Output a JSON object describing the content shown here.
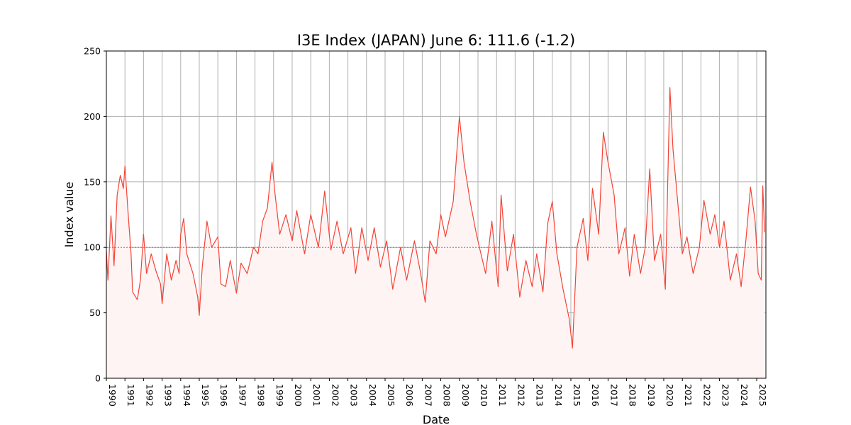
{
  "chart_data": {
    "type": "line",
    "title": "I3E Index (JAPAN) June 6: 111.6 (-1.2)",
    "xlabel": "Date",
    "ylabel": "Index value",
    "xlim": [
      "1990-01-01",
      "2025-07-01"
    ],
    "ylim": [
      0,
      250
    ],
    "yticks": [
      0,
      50,
      100,
      150,
      200,
      250
    ],
    "xticks": [
      "1990",
      "1991",
      "1992",
      "1993",
      "1994",
      "1995",
      "1996",
      "1997",
      "1998",
      "1999",
      "2000",
      "2001",
      "2002",
      "2003",
      "2004",
      "2005",
      "2006",
      "2007",
      "2008",
      "2009",
      "2010",
      "2011",
      "2012",
      "2013",
      "2014",
      "2015",
      "2016",
      "2017",
      "2018",
      "2019",
      "2020",
      "2021",
      "2022",
      "2023",
      "2024",
      "2025"
    ],
    "grid": true,
    "reference_line": 100,
    "colors": {
      "line": "#f44336",
      "fill": "#fdf4f3",
      "reference": "#808080"
    },
    "series": [
      {
        "values": [
          [
            "1990-01-01",
            97
          ],
          [
            "1990-02-01",
            75
          ],
          [
            "1990-04-01",
            124
          ],
          [
            "1990-06-01",
            86
          ],
          [
            "1990-08-01",
            140
          ],
          [
            "1990-10-01",
            155
          ],
          [
            "1990-12-01",
            145
          ],
          [
            "1991-01-01",
            162
          ],
          [
            "1991-03-01",
            128
          ],
          [
            "1991-05-01",
            95
          ],
          [
            "1991-06-01",
            66
          ],
          [
            "1991-09-01",
            60
          ],
          [
            "1991-11-01",
            75
          ],
          [
            "1992-01-01",
            110
          ],
          [
            "1992-03-01",
            80
          ],
          [
            "1992-06-01",
            95
          ],
          [
            "1992-09-01",
            82
          ],
          [
            "1992-12-01",
            72
          ],
          [
            "1993-01-01",
            57
          ],
          [
            "1993-04-01",
            95
          ],
          [
            "1993-07-01",
            75
          ],
          [
            "1993-10-01",
            90
          ],
          [
            "1993-12-01",
            80
          ],
          [
            "1994-01-01",
            110
          ],
          [
            "1994-03-01",
            122
          ],
          [
            "1994-05-01",
            95
          ],
          [
            "1994-09-01",
            80
          ],
          [
            "1994-12-01",
            62
          ],
          [
            "1995-01-01",
            48
          ],
          [
            "1995-03-01",
            85
          ],
          [
            "1995-06-01",
            120
          ],
          [
            "1995-09-01",
            100
          ],
          [
            "1996-01-01",
            108
          ],
          [
            "1996-03-01",
            72
          ],
          [
            "1996-06-01",
            70
          ],
          [
            "1996-09-01",
            90
          ],
          [
            "1997-01-01",
            65
          ],
          [
            "1997-04-01",
            88
          ],
          [
            "1997-08-01",
            80
          ],
          [
            "1997-12-01",
            100
          ],
          [
            "1998-03-01",
            95
          ],
          [
            "1998-06-01",
            120
          ],
          [
            "1998-09-01",
            130
          ],
          [
            "1998-12-01",
            165
          ],
          [
            "1999-02-01",
            140
          ],
          [
            "1999-05-01",
            110
          ],
          [
            "1999-09-01",
            125
          ],
          [
            "2000-01-01",
            105
          ],
          [
            "2000-04-01",
            128
          ],
          [
            "2000-09-01",
            95
          ],
          [
            "2001-01-01",
            125
          ],
          [
            "2001-06-01",
            100
          ],
          [
            "2001-10-01",
            143
          ],
          [
            "2002-02-01",
            98
          ],
          [
            "2002-06-01",
            120
          ],
          [
            "2002-10-01",
            95
          ],
          [
            "2003-03-01",
            115
          ],
          [
            "2003-06-01",
            80
          ],
          [
            "2003-10-01",
            115
          ],
          [
            "2004-02-01",
            90
          ],
          [
            "2004-06-01",
            115
          ],
          [
            "2004-10-01",
            85
          ],
          [
            "2005-02-01",
            105
          ],
          [
            "2005-06-01",
            68
          ],
          [
            "2005-11-01",
            100
          ],
          [
            "2006-03-01",
            75
          ],
          [
            "2006-08-01",
            105
          ],
          [
            "2006-12-01",
            80
          ],
          [
            "2007-03-01",
            58
          ],
          [
            "2007-06-01",
            105
          ],
          [
            "2007-10-01",
            95
          ],
          [
            "2008-01-01",
            125
          ],
          [
            "2008-04-01",
            108
          ],
          [
            "2008-09-01",
            135
          ],
          [
            "2009-01-01",
            200
          ],
          [
            "2009-04-01",
            165
          ],
          [
            "2009-08-01",
            135
          ],
          [
            "2009-12-01",
            110
          ],
          [
            "2010-03-01",
            95
          ],
          [
            "2010-06-01",
            80
          ],
          [
            "2010-10-01",
            120
          ],
          [
            "2011-02-01",
            70
          ],
          [
            "2011-04-01",
            140
          ],
          [
            "2011-08-01",
            82
          ],
          [
            "2011-12-01",
            110
          ],
          [
            "2012-04-01",
            62
          ],
          [
            "2012-08-01",
            90
          ],
          [
            "2012-12-01",
            70
          ],
          [
            "2013-03-01",
            95
          ],
          [
            "2013-07-01",
            66
          ],
          [
            "2013-10-01",
            118
          ],
          [
            "2014-01-01",
            135
          ],
          [
            "2014-04-01",
            95
          ],
          [
            "2014-08-01",
            68
          ],
          [
            "2014-12-01",
            45
          ],
          [
            "2015-02-01",
            23
          ],
          [
            "2015-05-01",
            100
          ],
          [
            "2015-09-01",
            122
          ],
          [
            "2015-12-01",
            90
          ],
          [
            "2016-03-01",
            145
          ],
          [
            "2016-07-01",
            110
          ],
          [
            "2016-10-01",
            188
          ],
          [
            "2017-01-01",
            165
          ],
          [
            "2017-05-01",
            140
          ],
          [
            "2017-08-01",
            95
          ],
          [
            "2017-12-01",
            115
          ],
          [
            "2018-03-01",
            78
          ],
          [
            "2018-06-01",
            110
          ],
          [
            "2018-10-01",
            80
          ],
          [
            "2019-01-01",
            100
          ],
          [
            "2019-04-01",
            160
          ],
          [
            "2019-07-01",
            90
          ],
          [
            "2019-11-01",
            110
          ],
          [
            "2020-02-01",
            68
          ],
          [
            "2020-05-01",
            222
          ],
          [
            "2020-07-01",
            175
          ],
          [
            "2020-10-01",
            135
          ],
          [
            "2021-01-01",
            95
          ],
          [
            "2021-04-01",
            108
          ],
          [
            "2021-08-01",
            80
          ],
          [
            "2021-12-01",
            100
          ],
          [
            "2022-03-01",
            136
          ],
          [
            "2022-07-01",
            110
          ],
          [
            "2022-10-01",
            125
          ],
          [
            "2023-01-01",
            100
          ],
          [
            "2023-04-01",
            120
          ],
          [
            "2023-08-01",
            75
          ],
          [
            "2023-12-01",
            95
          ],
          [
            "2024-03-01",
            70
          ],
          [
            "2024-06-01",
            105
          ],
          [
            "2024-09-01",
            146
          ],
          [
            "2024-12-01",
            120
          ],
          [
            "2025-02-01",
            80
          ],
          [
            "2025-04-01",
            75
          ],
          [
            "2025-05-01",
            147
          ],
          [
            "2025-06-06",
            111.6
          ]
        ]
      }
    ]
  }
}
